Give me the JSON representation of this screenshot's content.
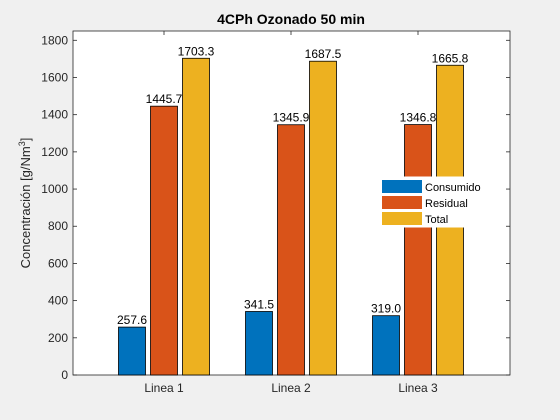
{
  "chart_data": {
    "type": "bar",
    "title": "4CPh Ozonado 50 min",
    "ylabel_main": "Concentración [g/Nm",
    "ylabel_sup": "3",
    "ylabel_end": "]",
    "xlabel": "",
    "ylim": [
      0,
      1850
    ],
    "yticks": [
      0,
      200,
      400,
      600,
      800,
      1000,
      1200,
      1400,
      1600,
      1800
    ],
    "categories": [
      "Linea 1",
      "Linea 2",
      "Linea 3"
    ],
    "series": [
      {
        "name": "Consumido",
        "color": "#0072bd",
        "values": [
          257.6,
          341.5,
          319.0
        ],
        "labels": [
          "257.6",
          "341.5",
          "319.0"
        ]
      },
      {
        "name": "Residual",
        "color": "#d95319",
        "values": [
          1445.7,
          1345.9,
          1346.8
        ],
        "labels": [
          "1445.7",
          "1345.9",
          "1346.8"
        ]
      },
      {
        "name": "Total",
        "color": "#edb120",
        "values": [
          1703.3,
          1687.5,
          1665.8
        ],
        "labels": [
          "1703.3",
          "1687.5",
          "1665.8"
        ]
      }
    ],
    "legend_position": "right",
    "grid": false
  }
}
